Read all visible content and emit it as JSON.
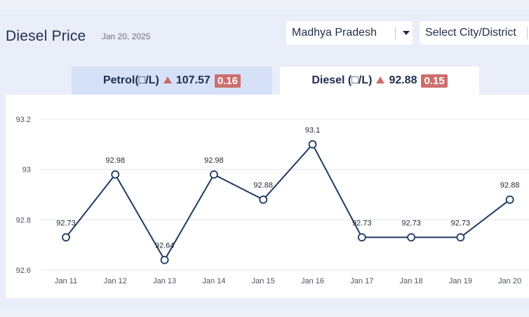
{
  "header": {
    "title": "Diesel Price",
    "date": "Jan 20, 2025"
  },
  "filters": {
    "state": "Madhya Pradesh",
    "city_placeholder": "Select City/District"
  },
  "tabs": [
    {
      "label": "Petrol(□/L)",
      "price": "107.57",
      "change": "0.16"
    },
    {
      "label": "Diesel (□/L)",
      "price": "92.88",
      "change": "0.15"
    }
  ],
  "colors": {
    "line": "#1f3a64",
    "change_badge": "#cd6e6e",
    "active_tab": "#ffffff",
    "inactive_tab": "#d6e1f7"
  },
  "chart_data": {
    "type": "line",
    "categories": [
      "Jan 11",
      "Jan 12",
      "Jan 13",
      "Jan 14",
      "Jan 15",
      "Jan 16",
      "Jan 17",
      "Jan 18",
      "Jan 19",
      "Jan 20"
    ],
    "series": [
      {
        "values": [
          92.73,
          92.98,
          92.64,
          92.98,
          92.88,
          93.1,
          92.73,
          92.73,
          92.73,
          92.88
        ]
      }
    ],
    "data_labels": [
      "92.73",
      "92.98",
      "92.64",
      "92.98",
      "92.88",
      "93.1",
      "92.73",
      "92.73",
      "92.73",
      "92.88"
    ],
    "y_ticks": [
      "93.2",
      "93",
      "92.8",
      "92.6"
    ],
    "y_tick_values": [
      93.2,
      93.0,
      92.8,
      92.6
    ],
    "ylim": [
      92.6,
      93.2
    ],
    "grid": true,
    "legend": "none"
  }
}
